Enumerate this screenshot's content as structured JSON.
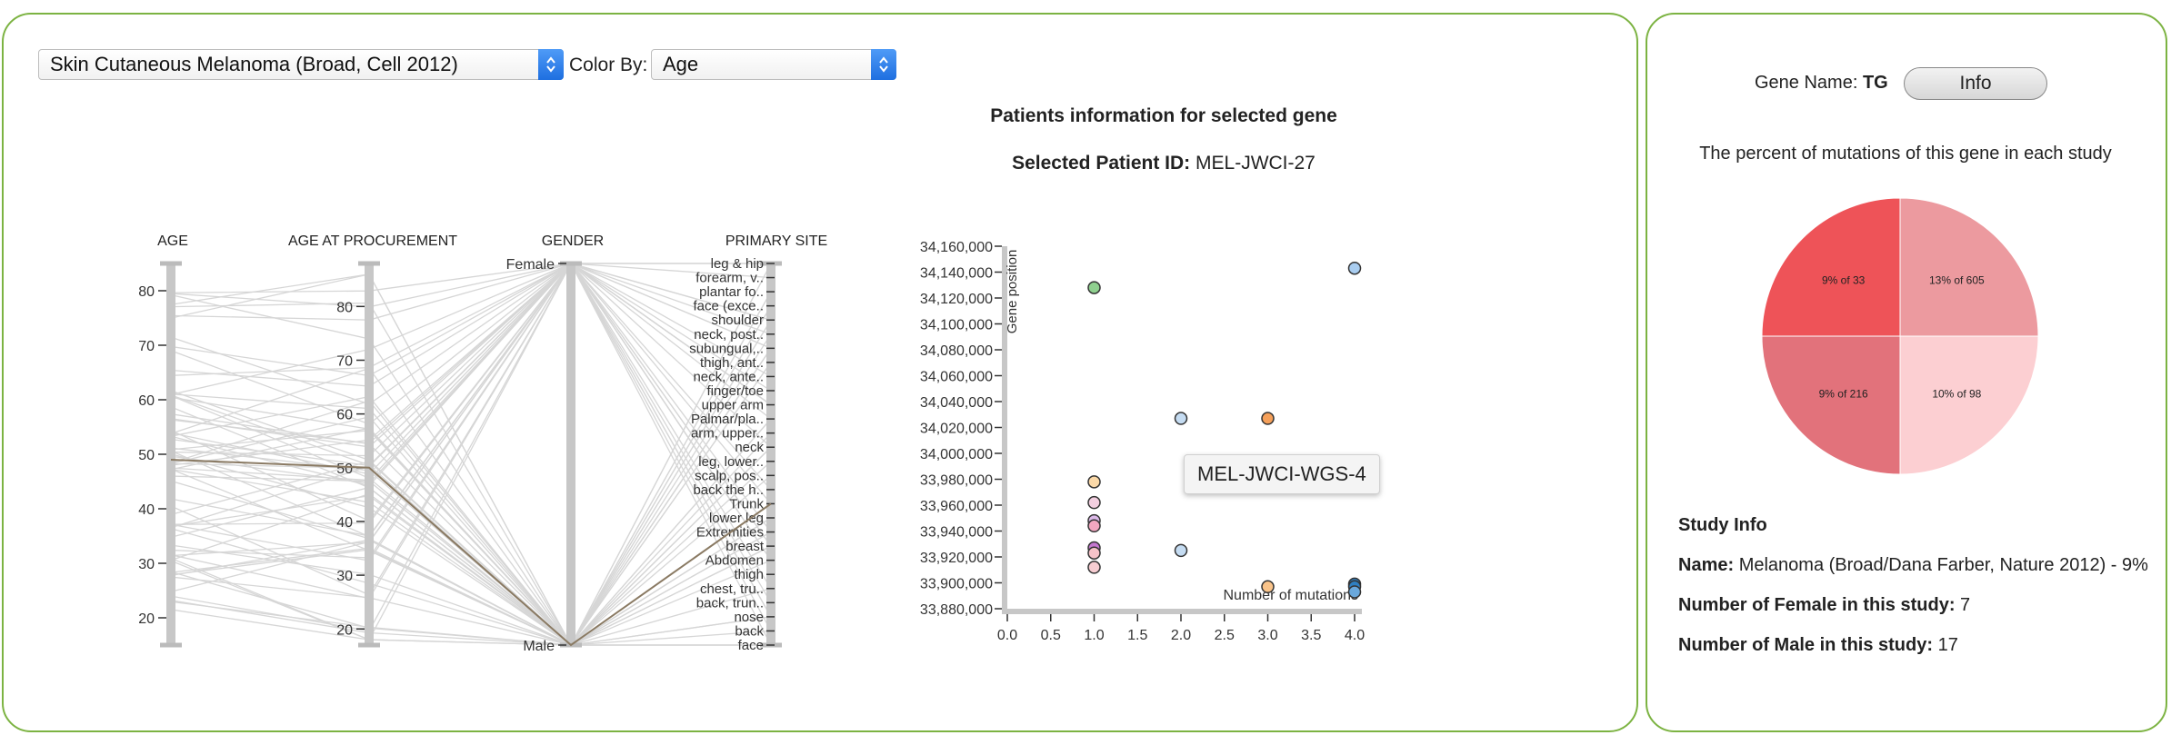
{
  "left_panel": {
    "study_select": {
      "value": "Skin Cutaneous Melanoma (Broad, Cell 2012)"
    },
    "color_by": {
      "label": "Color By:",
      "value": "Age"
    }
  },
  "parallel_coords": {
    "axes": [
      {
        "name": "AGE",
        "ticks": [
          "80",
          "70",
          "60",
          "50",
          "40",
          "30",
          "20"
        ],
        "tick_values": [
          80,
          70,
          60,
          50,
          40,
          30,
          20
        ],
        "range": [
          15,
          85
        ]
      },
      {
        "name": "AGE AT PROCUREMENT",
        "ticks": [
          "80",
          "70",
          "60",
          "50",
          "40",
          "30",
          "20"
        ],
        "tick_values": [
          80,
          70,
          60,
          50,
          40,
          30,
          20
        ],
        "range": [
          17,
          88
        ]
      },
      {
        "name": "GENDER",
        "ticks": [
          "Female",
          "Male"
        ]
      },
      {
        "name": "PRIMARY SITE",
        "ticks": [
          "leg & hip",
          "forearm, v..",
          "plantar fo..",
          "face (exce..",
          "shoulder",
          "neck, post..",
          "subungual,..",
          "thigh, ant..",
          "neck, ante..",
          "finger/toe",
          "upper arm",
          "Palmar/pla..",
          "arm, upper..",
          "neck",
          "leg, lower..",
          "scalp, pos..",
          "back the h..",
          "Trunk",
          "lower leg",
          "Extremities",
          "breast",
          "Abdomen",
          "thigh",
          "chest, tru..",
          "back, trun..",
          "nose",
          "back",
          "face"
        ]
      }
    ],
    "line_color": "#d6d6d6",
    "highlight_color": "#8a7a63"
  },
  "scatter": {
    "title": "Patients information for selected gene",
    "selected_label": "Selected Patient ID:",
    "selected_value": "MEL-JWCI-27",
    "tooltip": "MEL-JWCI-WGS-4"
  },
  "chart_data": [
    {
      "type": "scatter",
      "xlabel": "Number of mutations",
      "ylabel": "Gene position",
      "xlim": [
        0,
        4
      ],
      "ylim": [
        33880000,
        34160000
      ],
      "x_ticks": [
        "0.0",
        "0.5",
        "1.0",
        "1.5",
        "2.0",
        "2.5",
        "3.0",
        "3.5",
        "4.0"
      ],
      "y_ticks": [
        "34,160,000",
        "34,140,000",
        "34,120,000",
        "34,100,000",
        "34,080,000",
        "34,060,000",
        "34,040,000",
        "34,020,000",
        "34,000,000",
        "33,980,000",
        "33,960,000",
        "33,940,000",
        "33,920,000",
        "33,900,000",
        "33,880,000"
      ],
      "points": [
        {
          "x": 1.0,
          "y": 34128000,
          "color": "#8fd08f"
        },
        {
          "x": 1.0,
          "y": 33978000,
          "color": "#fbd9a8"
        },
        {
          "x": 1.0,
          "y": 33962000,
          "color": "#f3cfe0"
        },
        {
          "x": 1.0,
          "y": 33948000,
          "color": "#dcb9e8"
        },
        {
          "x": 1.0,
          "y": 33944000,
          "color": "#f2a7c0"
        },
        {
          "x": 1.0,
          "y": 33927000,
          "color": "#c477cf"
        },
        {
          "x": 1.0,
          "y": 33923000,
          "color": "#f7c3c9"
        },
        {
          "x": 1.0,
          "y": 33912000,
          "color": "#f7cdd2"
        },
        {
          "x": 2.0,
          "y": 34027000,
          "color": "#c5dcf2"
        },
        {
          "x": 2.0,
          "y": 33925000,
          "color": "#c5dcf2"
        },
        {
          "x": 3.0,
          "y": 34027000,
          "color": "#f5a05a"
        },
        {
          "x": 3.0,
          "y": 33897000,
          "color": "#fac48a"
        },
        {
          "x": 4.0,
          "y": 34143000,
          "color": "#a9cdf0"
        },
        {
          "x": 4.0,
          "y": 33899000,
          "color": "#2f7fc1"
        },
        {
          "x": 4.0,
          "y": 33897000,
          "color": "#2f7fc1"
        },
        {
          "x": 4.0,
          "y": 33893000,
          "color": "#6aa8dc"
        }
      ]
    },
    {
      "type": "pie",
      "title": "The percent of mutations of this gene in each study",
      "slices": [
        {
          "label": "13% of 605",
          "value": 25,
          "color": "#ec9a9f"
        },
        {
          "label": "10% of 98",
          "value": 25,
          "color": "#fccfd2"
        },
        {
          "label": "9% of 216",
          "value": 25,
          "color": "#e2727b"
        },
        {
          "label": "9% of 33",
          "value": 25,
          "color": "#ee5358"
        }
      ]
    }
  ],
  "right_panel": {
    "gene_label": "Gene Name:",
    "gene_value": "TG",
    "info_button": "Info",
    "pie_caption": "The percent of mutations of this gene in each study",
    "study_info": {
      "heading": "Study Info",
      "name_label": "Name:",
      "name_value": "Melanoma (Broad/Dana Farber, Nature 2012) - 9%",
      "female_label": "Number of Female in this study:",
      "female_value": "7",
      "male_label": "Number of Male in this study:",
      "male_value": "17"
    }
  }
}
